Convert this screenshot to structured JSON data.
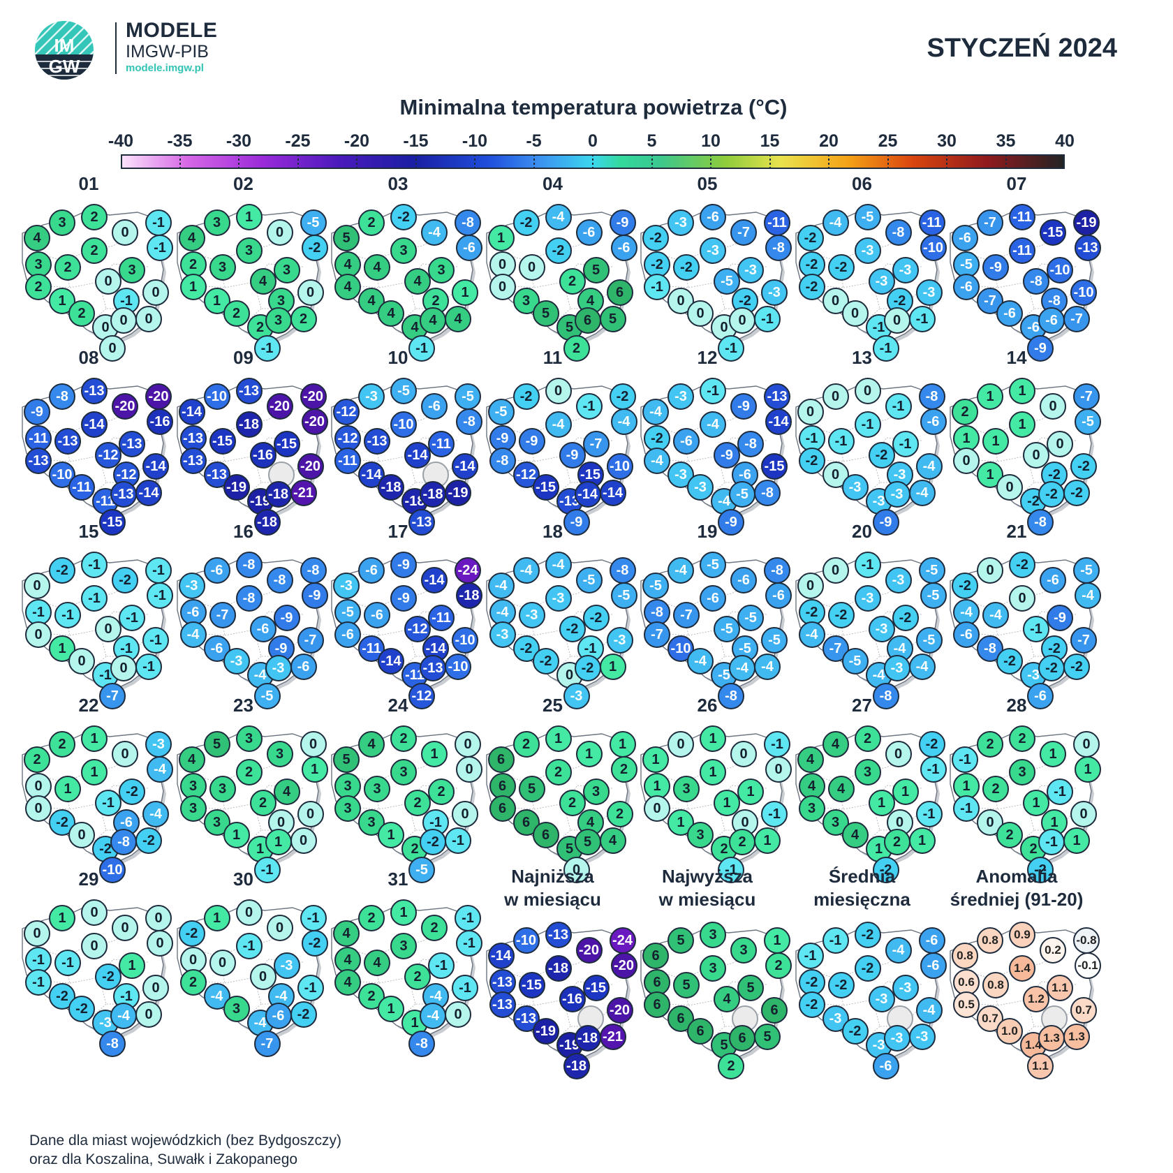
{
  "header": {
    "logo_text_top": "IM",
    "logo_text_bottom": "GW",
    "brand_title": "MODELE",
    "brand_sub": "IMGW-PIB",
    "brand_url": "modele.imgw.pl",
    "month_title": "STYCZEŃ 2024"
  },
  "scale": {
    "title": "Minimalna temperatura powietrza (°C)",
    "ticks": [
      "-40",
      "-35",
      "-30",
      "-25",
      "-20",
      "-15",
      "-10",
      "-5",
      "0",
      "5",
      "10",
      "15",
      "20",
      "25",
      "30",
      "35",
      "40"
    ]
  },
  "footnote": {
    "line1": "Dane dla miast wojewódzkich (bez Bydgoszczy)",
    "line2": "oraz dla Koszalina, Suwałk i Zakopanego"
  },
  "panels": [
    {
      "label": "01",
      "values": [
        "4",
        "3",
        "2",
        "0",
        "-1",
        "-1",
        "3",
        "2",
        "2",
        "3",
        "2",
        "0",
        "1",
        "-1",
        "0",
        "2",
        "0",
        "0",
        "0",
        "0"
      ]
    },
    {
      "label": "02",
      "values": [
        "4",
        "3",
        "1",
        "0",
        "-5",
        "-2",
        "2",
        "3",
        "3",
        "3",
        "1",
        "4",
        "1",
        "3",
        "0",
        "2",
        "2",
        "3",
        "2",
        "-1"
      ]
    },
    {
      "label": "03",
      "values": [
        "5",
        "2",
        "-2",
        "-4",
        "-8",
        "-6",
        "4",
        "4",
        "3",
        "3",
        "4",
        "4",
        "4",
        "2",
        "1",
        "4",
        "4",
        "4",
        "4",
        "-1"
      ]
    },
    {
      "label": "04",
      "values": [
        "1",
        "-2",
        "-4",
        "-6",
        "-9",
        "-6",
        "0",
        "0",
        "-2",
        "5",
        "0",
        "2",
        "3",
        "4",
        "6",
        "5",
        "5",
        "6",
        "5",
        "2"
      ]
    },
    {
      "label": "05",
      "values": [
        "-2",
        "-3",
        "-6",
        "-7",
        "-11",
        "-8",
        "-2",
        "-2",
        "-3",
        "-3",
        "-1",
        "-5",
        "0",
        "-2",
        "-3",
        "0",
        "0",
        "0",
        "-1",
        "-1"
      ]
    },
    {
      "label": "06",
      "values": [
        "-2",
        "-4",
        "-5",
        "-8",
        "-11",
        "-10",
        "-2",
        "-2",
        "-3",
        "-3",
        "-2",
        "-3",
        "0",
        "-2",
        "-3",
        "0",
        "-1",
        "0",
        "-1",
        "-1"
      ]
    },
    {
      "label": "07",
      "values": [
        "-6",
        "-7",
        "-11",
        "-15",
        "-19",
        "-13",
        "-5",
        "-9",
        "-11",
        "-10",
        "-6",
        "-8",
        "-7",
        "-8",
        "-10",
        "-6",
        "-6",
        "-6",
        "-7",
        "-9"
      ]
    },
    {
      "label": "08",
      "values": [
        "-9",
        "-8",
        "-13",
        "-20",
        "-20",
        "-16",
        "-11",
        "-13",
        "-14",
        "-13",
        "-13",
        "-12",
        "-10",
        "-12",
        "-14",
        "-11",
        "-11",
        "-13",
        "-14",
        "-15"
      ]
    },
    {
      "label": "09",
      "values": [
        "-14",
        "-10",
        "-13",
        "-20",
        "-20",
        "-20",
        "-13",
        "-15",
        "-18",
        "-15",
        "-13",
        "-16",
        "-13",
        "",
        "-20",
        "-19",
        "-19",
        "-18",
        "-21",
        "-18"
      ]
    },
    {
      "label": "10",
      "values": [
        "-12",
        "-3",
        "-5",
        "-6",
        "-5",
        "-8",
        "-12",
        "-13",
        "-10",
        "-11",
        "-11",
        "-14",
        "-14",
        "",
        "-14",
        "-18",
        "-18",
        "-18",
        "-19",
        "-13"
      ]
    },
    {
      "label": "11",
      "values": [
        "-5",
        "-2",
        "0",
        "-1",
        "-2",
        "-4",
        "-9",
        "-9",
        "-4",
        "-7",
        "-8",
        "-9",
        "-12",
        "-15",
        "-10",
        "-15",
        "-13",
        "-14",
        "-14",
        "-9"
      ]
    },
    {
      "label": "12",
      "values": [
        "-4",
        "-3",
        "-1",
        "-9",
        "-13",
        "-14",
        "-2",
        "-6",
        "-4",
        "-8",
        "-4",
        "-9",
        "-3",
        "-6",
        "-15",
        "-3",
        "-4",
        "-5",
        "-8",
        "-9"
      ]
    },
    {
      "label": "13",
      "values": [
        "0",
        "0",
        "0",
        "-1",
        "-8",
        "-6",
        "-1",
        "-1",
        "-1",
        "-1",
        "-2",
        "-2",
        "0",
        "-3",
        "-4",
        "-3",
        "-3",
        "-3",
        "-4",
        "-9"
      ]
    },
    {
      "label": "14",
      "values": [
        "2",
        "1",
        "1",
        "0",
        "-7",
        "-5",
        "1",
        "1",
        "1",
        "0",
        "0",
        "0",
        "1",
        "-2",
        "-2",
        "0",
        "-2",
        "-2",
        "-2",
        "-8"
      ]
    },
    {
      "label": "15",
      "values": [
        "0",
        "-2",
        "-1",
        "-2",
        "-1",
        "-1",
        "-1",
        "-1",
        "-1",
        "-1",
        "0",
        "0",
        "1",
        "-1",
        "-1",
        "0",
        "-1",
        "0",
        "-1",
        "-7"
      ]
    },
    {
      "label": "16",
      "values": [
        "-3",
        "-6",
        "-8",
        "-8",
        "-8",
        "-9",
        "-6",
        "-7",
        "-8",
        "-9",
        "-4",
        "-6",
        "-6",
        "-9",
        "-7",
        "-3",
        "-4",
        "-3",
        "-6",
        "-5"
      ]
    },
    {
      "label": "17",
      "values": [
        "-3",
        "-6",
        "-9",
        "-14",
        "-24",
        "-18",
        "-5",
        "-6",
        "-9",
        "-11",
        "-6",
        "-12",
        "-11",
        "-14",
        "-10",
        "-14",
        "-11",
        "-13",
        "-10",
        "-12"
      ]
    },
    {
      "label": "18",
      "values": [
        "-4",
        "-4",
        "-4",
        "-5",
        "-8",
        "-5",
        "-4",
        "-3",
        "-3",
        "-2",
        "-3",
        "-2",
        "-2",
        "-1",
        "-3",
        "-2",
        "0",
        "-2",
        "1",
        "-3"
      ]
    },
    {
      "label": "19",
      "values": [
        "-5",
        "-4",
        "-5",
        "-6",
        "-8",
        "-6",
        "-8",
        "-7",
        "-6",
        "-5",
        "-7",
        "-5",
        "-10",
        "-5",
        "-5",
        "-4",
        "-5",
        "-4",
        "-4",
        "-8"
      ]
    },
    {
      "label": "20",
      "values": [
        "0",
        "0",
        "-1",
        "-3",
        "-5",
        "-5",
        "-2",
        "-2",
        "-3",
        "-2",
        "-4",
        "-3",
        "-7",
        "-4",
        "-5",
        "-5",
        "-4",
        "-3",
        "-4",
        "-8"
      ]
    },
    {
      "label": "21",
      "values": [
        "-2",
        "0",
        "-2",
        "-6",
        "-5",
        "-4",
        "-4",
        "-4",
        "0",
        "-9",
        "-6",
        "-1",
        "-8",
        "-2",
        "-7",
        "-2",
        "-3",
        "-2",
        "-2",
        "-6"
      ]
    },
    {
      "label": "22",
      "values": [
        "2",
        "2",
        "1",
        "0",
        "-3",
        "-4",
        "0",
        "1",
        "1",
        "-2",
        "0",
        "-1",
        "-2",
        "-6",
        "-4",
        "0",
        "-2",
        "-8",
        "-2",
        "-10"
      ]
    },
    {
      "label": "23",
      "values": [
        "4",
        "5",
        "3",
        "3",
        "0",
        "1",
        "3",
        "3",
        "2",
        "4",
        "3",
        "2",
        "3",
        "0",
        "0",
        "1",
        "1",
        "1",
        "0",
        "-1"
      ]
    },
    {
      "label": "24",
      "values": [
        "5",
        "4",
        "2",
        "1",
        "0",
        "0",
        "3",
        "3",
        "3",
        "2",
        "3",
        "2",
        "3",
        "-1",
        "0",
        "1",
        "2",
        "-2",
        "-1",
        "-5"
      ]
    },
    {
      "label": "25",
      "values": [
        "6",
        "2",
        "1",
        "1",
        "1",
        "2",
        "6",
        "5",
        "2",
        "3",
        "6",
        "2",
        "6",
        "4",
        "2",
        "6",
        "5",
        "5",
        "4",
        "0"
      ]
    },
    {
      "label": "26",
      "values": [
        "1",
        "0",
        "1",
        "0",
        "-1",
        "0",
        "1",
        "3",
        "1",
        "1",
        "0",
        "1",
        "1",
        "0",
        "-1",
        "3",
        "2",
        "2",
        "1",
        "-1"
      ]
    },
    {
      "label": "27",
      "values": [
        "4",
        "4",
        "2",
        "0",
        "-2",
        "-1",
        "4",
        "4",
        "3",
        "1",
        "3",
        "1",
        "3",
        "0",
        "-1",
        "4",
        "1",
        "2",
        "1",
        "-2"
      ]
    },
    {
      "label": "28",
      "values": [
        "-1",
        "2",
        "2",
        "1",
        "0",
        "1",
        "1",
        "2",
        "3",
        "-1",
        "-1",
        "1",
        "0",
        "1",
        "0",
        "2",
        "2",
        "-1",
        "1",
        "-2"
      ]
    },
    {
      "label": "29",
      "values": [
        "0",
        "1",
        "0",
        "0",
        "0",
        "0",
        "-1",
        "-1",
        "0",
        "1",
        "-1",
        "-2",
        "-2",
        "-1",
        "0",
        "-2",
        "-3",
        "-4",
        "0",
        "-8"
      ]
    },
    {
      "label": "30",
      "values": [
        "-2",
        "1",
        "0",
        "0",
        "-1",
        "-2",
        "0",
        "0",
        "-1",
        "-3",
        "2",
        "0",
        "-4",
        "-4",
        "-1",
        "3",
        "-4",
        "-6",
        "-2",
        "-7"
      ]
    },
    {
      "label": "31",
      "values": [
        "4",
        "2",
        "1",
        "2",
        "-1",
        "-1",
        "4",
        "4",
        "3",
        "-1",
        "4",
        "2",
        "2",
        "-4",
        "-1",
        "1",
        "1",
        "-4",
        "0",
        "-8"
      ]
    },
    {
      "label": "Najniższa\nw miesiącu",
      "summary": true,
      "values": [
        "-14",
        "-10",
        "-13",
        "-20",
        "-24",
        "-20",
        "-13",
        "-15",
        "-18",
        "-15",
        "-13",
        "-16",
        "-13",
        "",
        "-20",
        "-19",
        "-19",
        "-18",
        "-21",
        "-18"
      ]
    },
    {
      "label": "Najwyższa\nw miesiącu",
      "summary": true,
      "values": [
        "6",
        "5",
        "3",
        "3",
        "1",
        "2",
        "6",
        "5",
        "3",
        "5",
        "6",
        "4",
        "6",
        "",
        "6",
        "6",
        "5",
        "6",
        "5",
        "2"
      ]
    },
    {
      "label": "Średnia\nmiesięczna",
      "summary": true,
      "values": [
        "-1",
        "-1",
        "-2",
        "-4",
        "-6",
        "-6",
        "-2",
        "-2",
        "-2",
        "-3",
        "-2",
        "-3",
        "-3",
        "",
        "-4",
        "-2",
        "-3",
        "-3",
        "-3",
        "-6"
      ]
    },
    {
      "label": "Anomalia\nśredniej (91-20)",
      "summary": true,
      "anomaly": true,
      "values": [
        "0.8",
        "0.8",
        "0.9",
        "0.2",
        "-0.8",
        "-0.1",
        "0.6",
        "0.8",
        "1.4",
        "1.1",
        "0.5",
        "1.2",
        "0.7",
        "",
        "0.7",
        "1.0",
        "1.4",
        "1.3",
        "1.3",
        "1.1"
      ]
    }
  ],
  "colors": {
    "ink": "#1e2b3c",
    "map_fill": "#ffffff",
    "empty_dot": "#ebebeb"
  }
}
